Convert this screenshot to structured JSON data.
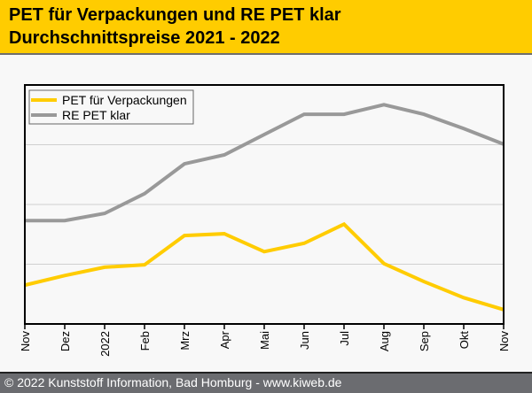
{
  "header": {
    "title_line1": "PET für Verpackungen und RE PET klar",
    "title_line2": "Durchschnittspreise 2021 - 2022"
  },
  "footer": {
    "copyright": "© 2022 Kunststoff Information, Bad Homburg - www.kiweb.de"
  },
  "colors": {
    "header_bg": "#ffcc00",
    "series_pet": "#ffcc00",
    "series_repet": "#999999",
    "footer_bg": "#6b6c70"
  },
  "chart_data": {
    "type": "line",
    "title": "PET für Verpackungen und RE PET klar – Durchschnittspreise 2021 - 2022",
    "xlabel": "",
    "ylabel": "",
    "y_axis_note": "no y tick labels shown; values are relative index estimates (gridlines at 1, 2, 3)",
    "ylim": [
      0,
      4
    ],
    "grid": true,
    "legend_position": "top-left",
    "categories": [
      "Nov",
      "Dez",
      "2022",
      "Feb",
      "Mrz",
      "Apr",
      "Mai",
      "Jun",
      "Jul",
      "Aug",
      "Sep",
      "Okt",
      "Nov"
    ],
    "series": [
      {
        "name": "PET für Verpackungen",
        "color": "#ffcc00",
        "values": [
          0.65,
          0.81,
          0.95,
          0.99,
          1.48,
          1.51,
          1.21,
          1.35,
          1.67,
          1.01,
          0.71,
          0.44,
          0.24
        ]
      },
      {
        "name": "RE PET klar",
        "color": "#999999",
        "values": [
          1.73,
          1.73,
          1.85,
          2.18,
          2.68,
          2.83,
          3.17,
          3.51,
          3.51,
          3.67,
          3.51,
          3.27,
          3.01
        ]
      }
    ]
  }
}
